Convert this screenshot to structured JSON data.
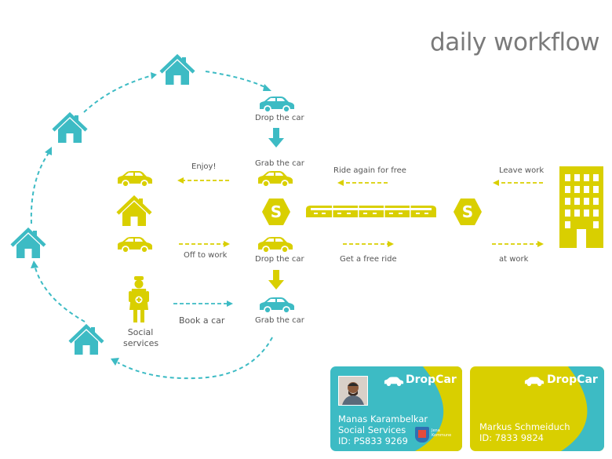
{
  "title": "daily workflow",
  "colors": {
    "teal": "#3dbbc4",
    "yellow": "#d9cf00",
    "text": "#555555",
    "title": "#7a7a7a"
  },
  "labels": {
    "drop_car_top": "Drop the car",
    "grab_car_top": "Grab the car",
    "enjoy": "Enjoy!",
    "ride_again": "Ride again for free",
    "leave_work": "Leave work",
    "off_to_work": "Off to work",
    "drop_car_mid": "Drop the car",
    "get_free_ride": "Get a free ride",
    "at_work": "at work",
    "book_car": "Book a car",
    "grab_car_bottom": "Grab the car",
    "social_services": "Social\nservices",
    "station_letter": "S"
  },
  "cards": [
    {
      "brand": "DropCar",
      "name": "Manas Karambelkar",
      "org": "Social Services",
      "id": "ID: PS833 9269",
      "badge": "Jena Kommune",
      "color": "#3dbbc4"
    },
    {
      "brand": "DropCar",
      "name": "Markus Schmeiduch",
      "id": "ID: 7833 9824",
      "color": "#d9cf00"
    }
  ],
  "icons": [
    "house-icon",
    "car-icon",
    "building-icon",
    "train-icon",
    "station-icon",
    "nurse-icon",
    "down-arrow-icon",
    "avatar"
  ]
}
